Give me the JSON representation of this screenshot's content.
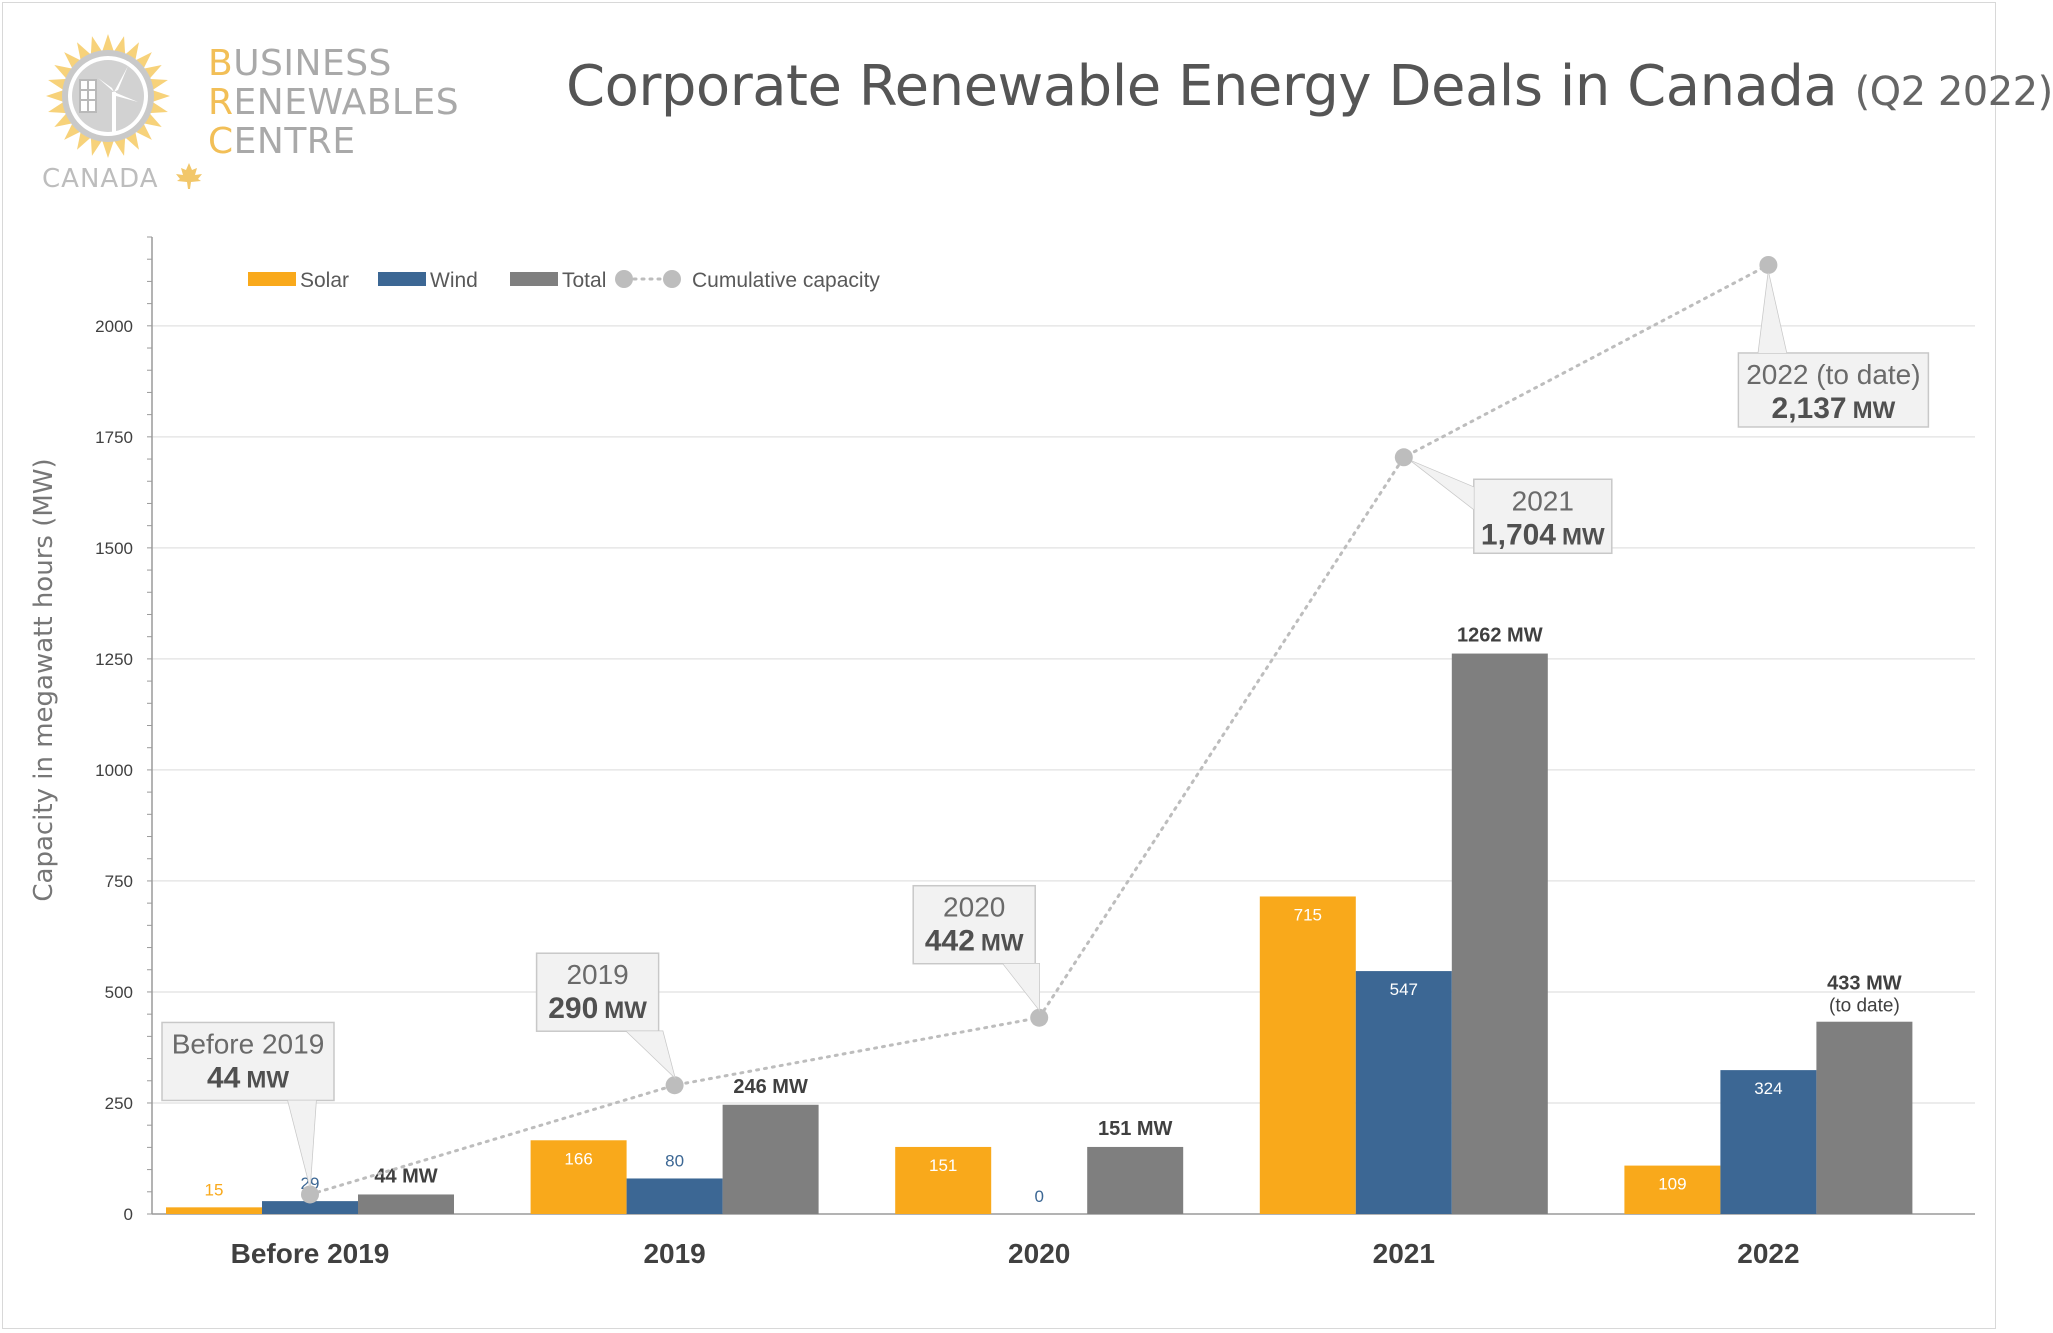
{
  "header": {
    "title_main": "Corporate Renewable Energy Deals in Canada",
    "title_sub": "(Q2 2022)"
  },
  "logo": {
    "line1_cap": "B",
    "line1_rest": "USINESS",
    "line2_cap": "R",
    "line2_rest": "ENEWABLES",
    "line3_cap": "C",
    "line3_rest": "ENTRE",
    "country": "CANADA"
  },
  "colors": {
    "solar": "#F9A91B",
    "wind": "#3C6794",
    "total": "#7F7F7F",
    "cumulative": "#BDBDBD",
    "label_text": "#404040"
  },
  "chart_data": {
    "type": "bar",
    "title": "Corporate Renewable Energy Deals in Canada (Q2 2022)",
    "xlabel": "",
    "ylabel": "Capacity  in megawatt hours (MW)",
    "ylim": [
      0,
      2200
    ],
    "yticks": [
      0,
      250,
      500,
      750,
      1000,
      1250,
      1500,
      1750,
      2000
    ],
    "grid": true,
    "legend_position": "top-left",
    "categories": [
      "Before 2019",
      "2019",
      "2020",
      "2021",
      "2022"
    ],
    "series": [
      {
        "name": "Solar",
        "key": "solar",
        "values": [
          15,
          166,
          151,
          715,
          109
        ],
        "labels": [
          "15",
          "166",
          "151",
          "715",
          "109"
        ]
      },
      {
        "name": "Wind",
        "key": "wind",
        "values": [
          29,
          80,
          0,
          547,
          324
        ],
        "labels": [
          "29",
          "80",
          "0",
          "547",
          "324"
        ]
      },
      {
        "name": "Total",
        "key": "total",
        "values": [
          44,
          246,
          151,
          1262,
          433
        ],
        "labels": [
          "44 MW",
          "246 MW",
          "151 MW",
          "1262 MW",
          "433 MW"
        ],
        "label_notes": [
          "",
          "",
          "",
          "",
          "(to date)"
        ]
      }
    ],
    "cumulative": {
      "name": "Cumulative capacity",
      "values": [
        44,
        290,
        442,
        1704,
        2137
      ],
      "callouts": [
        {
          "line1": "Before 2019",
          "value": "44",
          "unit": "MW"
        },
        {
          "line1": "2019",
          "value": "290",
          "unit": "MW"
        },
        {
          "line1": "2020",
          "value": "442",
          "unit": "MW"
        },
        {
          "line1": "2021",
          "value": "1,704",
          "unit": "MW"
        },
        {
          "line1": "2022 (to date)",
          "value": "2,137",
          "unit": "MW"
        }
      ]
    }
  }
}
